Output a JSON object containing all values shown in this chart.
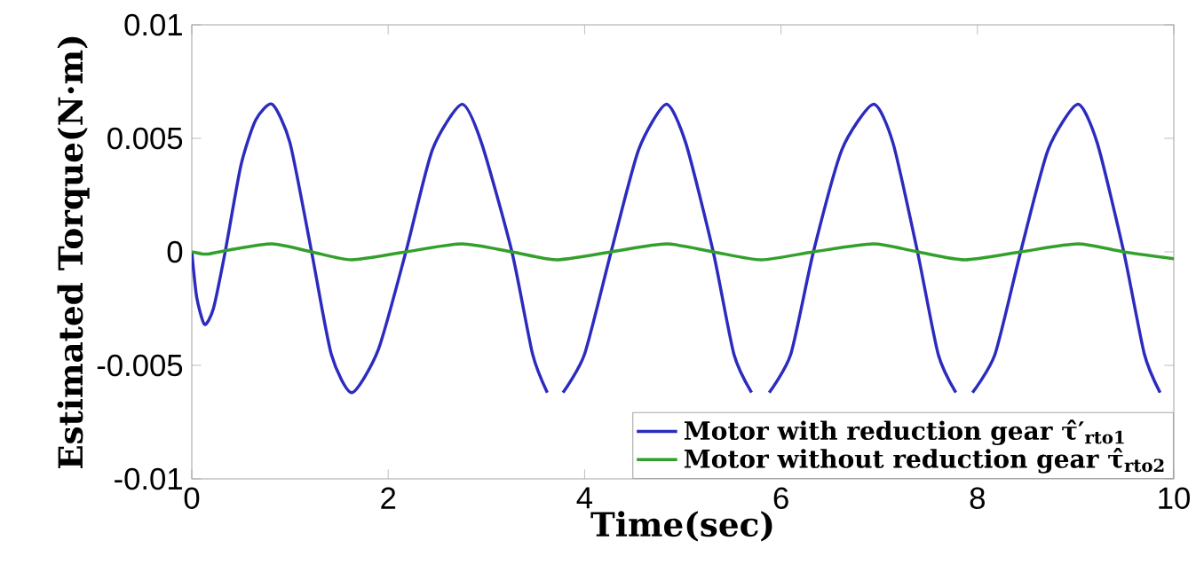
{
  "chart_data": {
    "type": "line",
    "xlabel": "Time(sec)",
    "ylabel": "Estimated Torque(N·m)",
    "xlim": [
      0,
      10
    ],
    "ylim": [
      -0.01,
      0.01
    ],
    "xticks": [
      0,
      2,
      4,
      6,
      8,
      10
    ],
    "yticks": [
      -0.01,
      -0.005,
      0,
      0.005,
      0.01
    ],
    "grid": false,
    "legend": "bottom right",
    "marker": "none",
    "line_style": "solid",
    "series": [
      {
        "name": "Motor with reduction gear  τ̂′$_{rto1}$",
        "color": "#2b2bbf",
        "x": [
          0,
          0.05,
          0.13,
          0.22,
          0.34,
          0.5,
          0.65,
          0.82,
          1.0,
          1.22,
          1.42,
          1.63,
          1.9,
          2.18,
          2.45,
          2.75,
          2.95,
          3.26,
          3.47,
          3.62,
          3.71,
          3.78,
          4.0,
          4.27,
          4.55,
          4.83,
          5.03,
          5.31,
          5.52,
          5.7,
          5.8,
          5.88,
          6.1,
          6.33,
          6.62,
          6.94,
          7.14,
          7.39,
          7.6,
          7.78,
          7.87,
          7.95,
          8.18,
          8.44,
          8.72,
          9.02,
          9.22,
          9.49,
          9.7,
          9.86
        ],
        "values": [
          0,
          -0.002,
          -0.0032,
          -0.0025,
          0,
          0.0038,
          0.0058,
          0.0065,
          0.0048,
          0,
          -0.0045,
          -0.0062,
          -0.0043,
          0,
          0.0045,
          0.0065,
          0.0048,
          0,
          -0.0045,
          -0.0062,
          null,
          -0.0062,
          -0.0045,
          0,
          0.0045,
          0.0065,
          0.0048,
          0,
          -0.0045,
          -0.0062,
          null,
          -0.0062,
          -0.0045,
          0,
          0.0045,
          0.0065,
          0.0048,
          0,
          -0.0045,
          -0.0062,
          null,
          -0.0062,
          -0.0045,
          0,
          0.0045,
          0.0065,
          0.0048,
          0,
          -0.0045,
          -0.0062
        ]
      },
      {
        "name": "Motor without reduction gear  τ̂$_{rto2}$",
        "color": "#33a02c",
        "x": [
          0,
          0.15,
          0.4,
          0.82,
          1.22,
          1.63,
          2.18,
          2.75,
          3.26,
          3.71,
          4.27,
          4.83,
          5.31,
          5.8,
          6.33,
          6.94,
          7.39,
          7.87,
          8.44,
          9.02,
          9.49,
          10
        ],
        "values": [
          0,
          -0.0001,
          0.0001,
          0.00035,
          0,
          -0.00035,
          0,
          0.00035,
          0,
          -0.00035,
          0,
          0.00035,
          0,
          -0.00035,
          0,
          0.00035,
          0,
          -0.00035,
          0,
          0.00035,
          0,
          -0.0003
        ]
      }
    ]
  }
}
